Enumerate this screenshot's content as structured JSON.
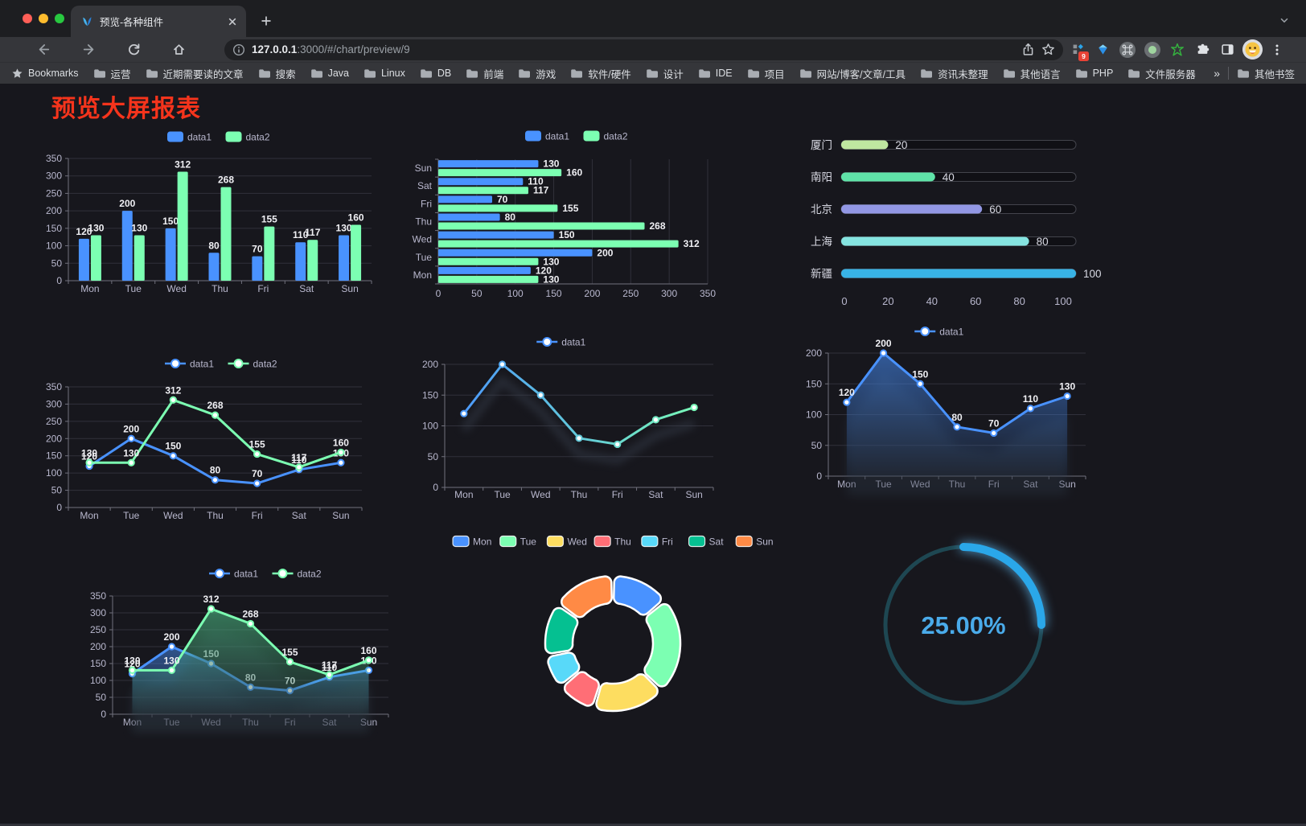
{
  "browser": {
    "traffic_lights": [
      "#ff5f57",
      "#febc2e",
      "#28c840"
    ],
    "tab_title": "预览-各种组件",
    "url_host": "127.0.0.1",
    "url_rest": ":3000/#/chart/preview/9",
    "extension_badge": "9",
    "bookmarks_label": "Bookmarks",
    "bookmark_folders": [
      "运营",
      "近期需要读的文章",
      "搜索",
      "Java",
      "Linux",
      "DB",
      "前端",
      "游戏",
      "软件/硬件",
      "设计",
      "IDE",
      "项目",
      "网站/博客/文章/工具",
      "资讯未整理",
      "其他语言",
      "PHP",
      "文件服务器"
    ],
    "bookmarks_overflow": "»",
    "other_bookmarks": "其他书签"
  },
  "page": {
    "title": "预览大屏报表",
    "title_color": "#f5341c"
  },
  "chart_data": [
    {
      "id": "grouped-bar",
      "type": "bar",
      "legend_position": "top",
      "grid": true,
      "categories": [
        "Mon",
        "Tue",
        "Wed",
        "Thu",
        "Fri",
        "Sat",
        "Sun"
      ],
      "series": [
        {
          "name": "data1",
          "color": "#4992ff",
          "values": [
            120,
            200,
            150,
            80,
            70,
            110,
            130
          ]
        },
        {
          "name": "data2",
          "color": "#7cffb2",
          "values": [
            130,
            130,
            312,
            268,
            155,
            117,
            160
          ]
        }
      ],
      "ylim": [
        0,
        350
      ],
      "ystep": 50
    },
    {
      "id": "horizontal-bar",
      "type": "bar",
      "orientation": "horizontal",
      "legend_position": "top",
      "grid": true,
      "categories": [
        "Mon",
        "Tue",
        "Wed",
        "Thu",
        "Fri",
        "Sat",
        "Sun"
      ],
      "series": [
        {
          "name": "data1",
          "color": "#4992ff",
          "values": [
            120,
            200,
            150,
            80,
            70,
            110,
            130
          ]
        },
        {
          "name": "data2",
          "color": "#7cffb2",
          "values": [
            130,
            130,
            312,
            268,
            155,
            117,
            160
          ]
        }
      ],
      "xlim": [
        0,
        350
      ],
      "xstep": 50
    },
    {
      "id": "city-progress",
      "type": "bar",
      "style": "progress-pills",
      "items": [
        {
          "label": "厦门",
          "value": 20,
          "color": "#bfe7a0"
        },
        {
          "label": "南阳",
          "value": 40,
          "color": "#5fe3a8"
        },
        {
          "label": "北京",
          "value": 60,
          "color": "#9297e4"
        },
        {
          "label": "上海",
          "value": 80,
          "color": "#85e4e0"
        },
        {
          "label": "新疆",
          "value": 100,
          "color": "#38b2e5"
        }
      ],
      "xlim": [
        0,
        100
      ],
      "xticks": [
        0,
        20,
        40,
        60,
        80,
        100
      ]
    },
    {
      "id": "dual-line",
      "type": "line",
      "legend_position": "top",
      "grid": true,
      "categories": [
        "Mon",
        "Tue",
        "Wed",
        "Thu",
        "Fri",
        "Sat",
        "Sun"
      ],
      "series": [
        {
          "name": "data1",
          "color": "#4992ff",
          "values": [
            120,
            200,
            150,
            80,
            70,
            110,
            130
          ]
        },
        {
          "name": "data2",
          "color": "#7cffb2",
          "values": [
            130,
            130,
            312,
            268,
            155,
            117,
            160
          ]
        }
      ],
      "ylim": [
        0,
        350
      ],
      "ystep": 50,
      "data_labels": true
    },
    {
      "id": "gradient-line",
      "type": "line",
      "legend_position": "top",
      "grid": true,
      "categories": [
        "Mon",
        "Tue",
        "Wed",
        "Thu",
        "Fri",
        "Sat",
        "Sun"
      ],
      "series": [
        {
          "name": "data1",
          "gradient": [
            "#4992ff",
            "#7cffb2"
          ],
          "values": [
            120,
            200,
            150,
            80,
            70,
            110,
            130
          ]
        }
      ],
      "ylim": [
        0,
        200
      ],
      "ystep": 50,
      "data_labels": false,
      "shadow": true
    },
    {
      "id": "area-line",
      "type": "area",
      "legend_position": "top",
      "grid": true,
      "categories": [
        "Mon",
        "Tue",
        "Wed",
        "Thu",
        "Fri",
        "Sat",
        "Sun"
      ],
      "series": [
        {
          "name": "data1",
          "color": "#4992ff",
          "values": [
            120,
            200,
            150,
            80,
            70,
            110,
            130
          ]
        }
      ],
      "ylim": [
        0,
        200
      ],
      "ystep": 50,
      "data_labels": true,
      "shadow": true
    },
    {
      "id": "dual-area",
      "type": "area",
      "legend_position": "top",
      "grid": true,
      "categories": [
        "Mon",
        "Tue",
        "Wed",
        "Thu",
        "Fri",
        "Sat",
        "Sun"
      ],
      "series": [
        {
          "name": "data1",
          "color": "#4992ff",
          "values": [
            120,
            200,
            150,
            80,
            70,
            110,
            130
          ]
        },
        {
          "name": "data2",
          "color": "#7cffb2",
          "values": [
            130,
            130,
            312,
            268,
            155,
            117,
            160
          ]
        }
      ],
      "ylim": [
        0,
        350
      ],
      "ystep": 50,
      "data_labels": true,
      "shadow": true
    },
    {
      "id": "donut",
      "type": "pie",
      "inner_radius_ratio": 0.6,
      "legend_position": "top",
      "slices": [
        {
          "label": "Mon",
          "value": 120,
          "color": "#4992ff"
        },
        {
          "label": "Tue",
          "value": 200,
          "color": "#7cffb2"
        },
        {
          "label": "Wed",
          "value": 150,
          "color": "#fddd60"
        },
        {
          "label": "Thu",
          "value": 80,
          "color": "#ff6e76"
        },
        {
          "label": "Fri",
          "value": 70,
          "color": "#58d9f9"
        },
        {
          "label": "Sat",
          "value": 110,
          "color": "#05c091"
        },
        {
          "label": "Sun",
          "value": 130,
          "color": "#ff8a45"
        }
      ],
      "border_color": "#ffffff"
    },
    {
      "id": "gauge",
      "type": "gauge",
      "value": 25,
      "label": "25.00%",
      "progress_color": "#2aa7e9",
      "track_color": "#1e4752",
      "text_color": "#4aabea"
    }
  ]
}
